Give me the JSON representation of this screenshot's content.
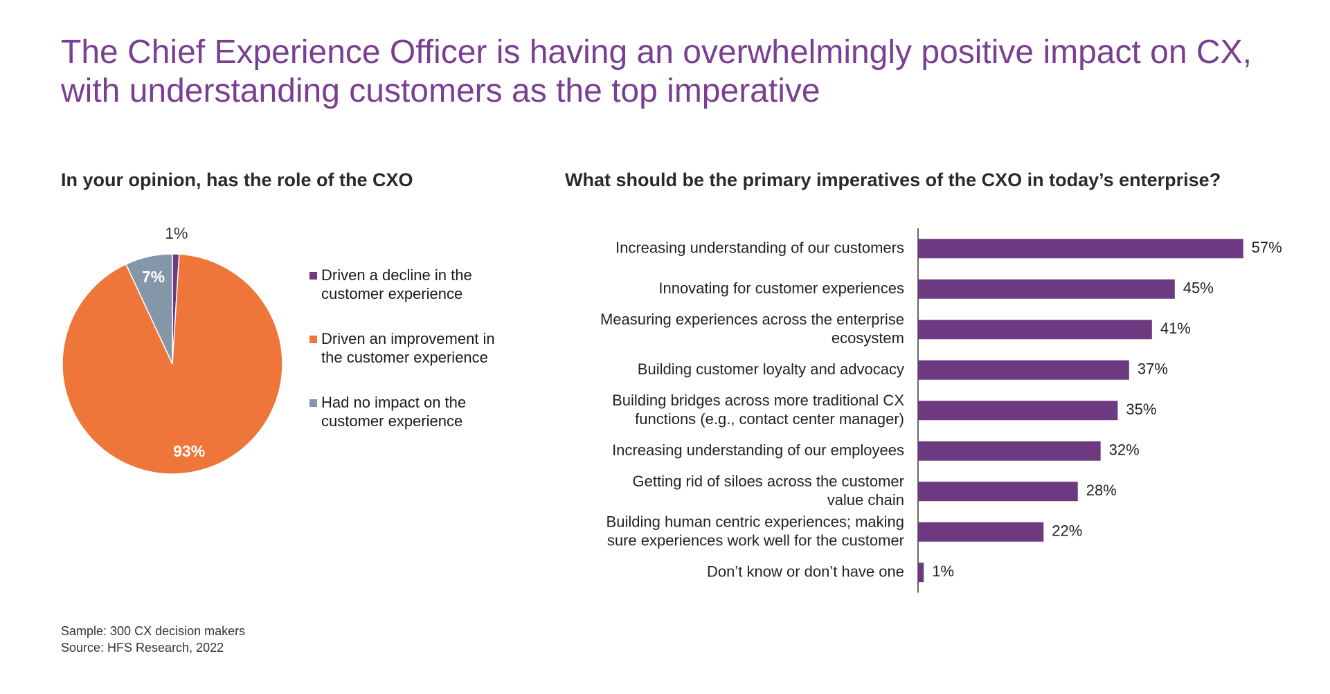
{
  "title": "The Chief Experience Officer is having an overwhelmingly positive impact on CX, with understanding customers as the top imperative",
  "footer": {
    "sample": "Sample: 300 CX decision makers",
    "source": "Source: HFS Research, 2022"
  },
  "chart_data": [
    {
      "type": "pie",
      "title": "In your opinion, has the role of the CXO",
      "slices": [
        {
          "label": "Driven a decline in the customer experience",
          "value": 1,
          "value_label": "1%",
          "color": "#6d3a82"
        },
        {
          "label": "Driven an improvement in the customer experience",
          "value": 93,
          "value_label": "93%",
          "color": "#ee763a"
        },
        {
          "label": "Had no impact on the customer experience",
          "value": 7,
          "value_label": "7%",
          "color": "#8497a8"
        }
      ],
      "legend_position": "right"
    },
    {
      "type": "bar",
      "orientation": "horizontal",
      "title": "What should be the primary imperatives of the CXO in today’s enterprise?",
      "categories": [
        [
          "Increasing understanding of our customers"
        ],
        [
          "Innovating for customer experiences"
        ],
        [
          "Measuring experiences across the enterprise",
          "ecosystem"
        ],
        [
          "Building customer loyalty and advocacy"
        ],
        [
          "Building bridges across more traditional CX",
          "functions (e.g., contact center manager)"
        ],
        [
          "Increasing understanding of our employees"
        ],
        [
          "Getting rid of siloes across the customer",
          "value chain"
        ],
        [
          "Building human centric experiences; making",
          "sure experiences work well for the customer"
        ],
        [
          "Don’t know or don’t have one"
        ]
      ],
      "values": [
        57,
        45,
        41,
        37,
        35,
        32,
        28,
        22,
        1
      ],
      "value_labels": [
        "57%",
        "45%",
        "41%",
        "37%",
        "35%",
        "32%",
        "28%",
        "22%",
        "1%"
      ],
      "color": "#6d3a82"
    }
  ]
}
